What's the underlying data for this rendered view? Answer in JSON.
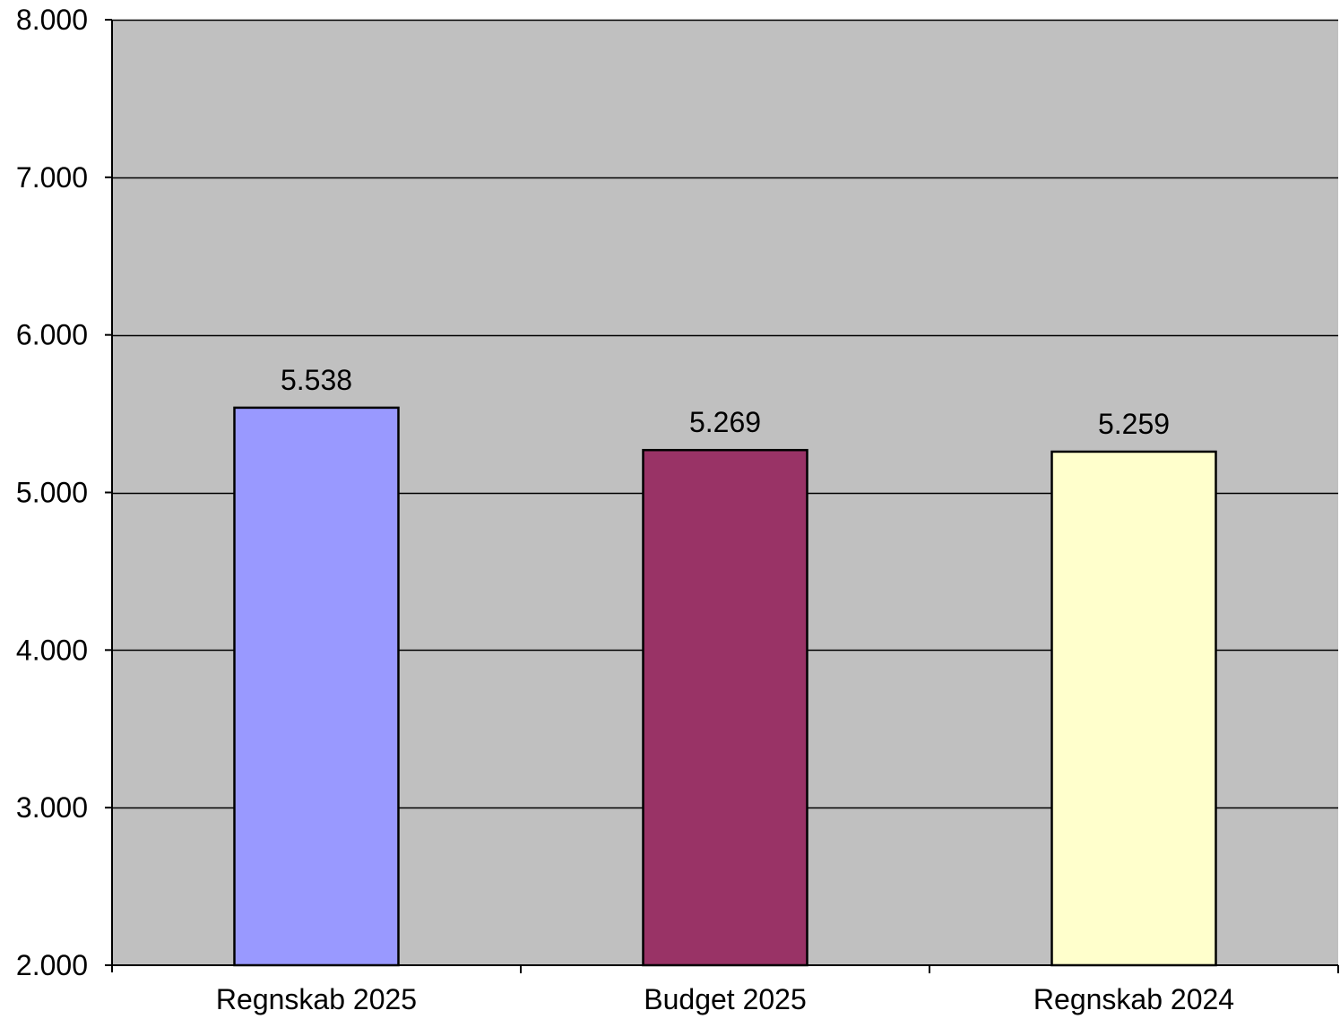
{
  "chart_data": {
    "type": "bar",
    "title": "",
    "xlabel": "",
    "ylabel": "",
    "categories": [
      "Regnskab 2025",
      "Budget 2025",
      "Regnskab 2024"
    ],
    "values": [
      5538,
      5269,
      5259
    ],
    "value_labels": [
      "5.538",
      "5.269",
      "5.259"
    ],
    "bar_colors": [
      "#9999FF",
      "#993366",
      "#FFFFCC"
    ],
    "ylim": [
      2000,
      8000
    ],
    "yticks": [
      2000,
      3000,
      4000,
      5000,
      6000,
      7000,
      8000
    ],
    "ytick_labels": [
      "2.000",
      "3.000",
      "4.000",
      "5.000",
      "6.000",
      "7.000",
      "8.000"
    ],
    "grid": true,
    "legend": "none",
    "plot_background": "#C0C0C0"
  }
}
